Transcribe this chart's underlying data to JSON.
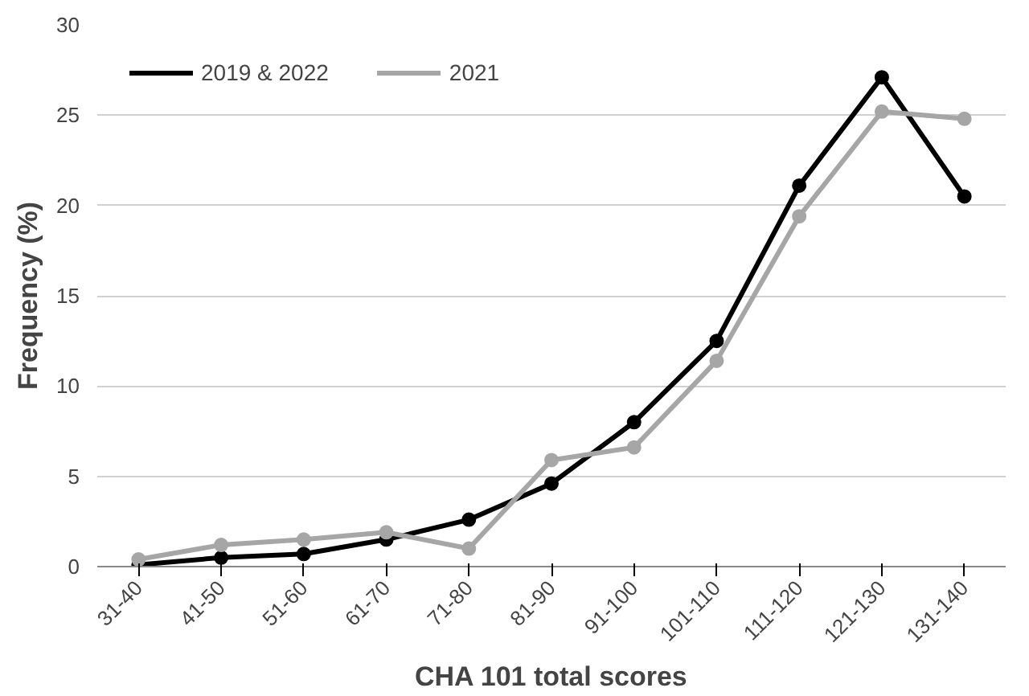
{
  "chart_data": {
    "type": "line",
    "xlabel": "CHA 101 total scores",
    "ylabel": "Frequency (%)",
    "categories": [
      "31-40",
      "41-50",
      "51-60",
      "61-70",
      "71-80",
      "81-90",
      "91-100",
      "101-110",
      "111-120",
      "121-130",
      "131-140"
    ],
    "series": [
      {
        "name": "2019 & 2022",
        "color": "#000000",
        "values": [
          0.1,
          0.5,
          0.7,
          1.5,
          2.6,
          4.6,
          8.0,
          12.5,
          21.1,
          27.1,
          20.5
        ]
      },
      {
        "name": "2021",
        "color": "#a6a6a6",
        "values": [
          0.4,
          1.2,
          1.5,
          1.9,
          1.0,
          5.9,
          6.6,
          11.4,
          19.4,
          25.2,
          24.8
        ]
      }
    ],
    "ylim": [
      0,
      30
    ],
    "yticks": [
      0,
      5,
      10,
      15,
      20,
      25,
      30
    ],
    "grid": "y",
    "legend": "top left",
    "marker": "circle",
    "line_style": "solid"
  }
}
